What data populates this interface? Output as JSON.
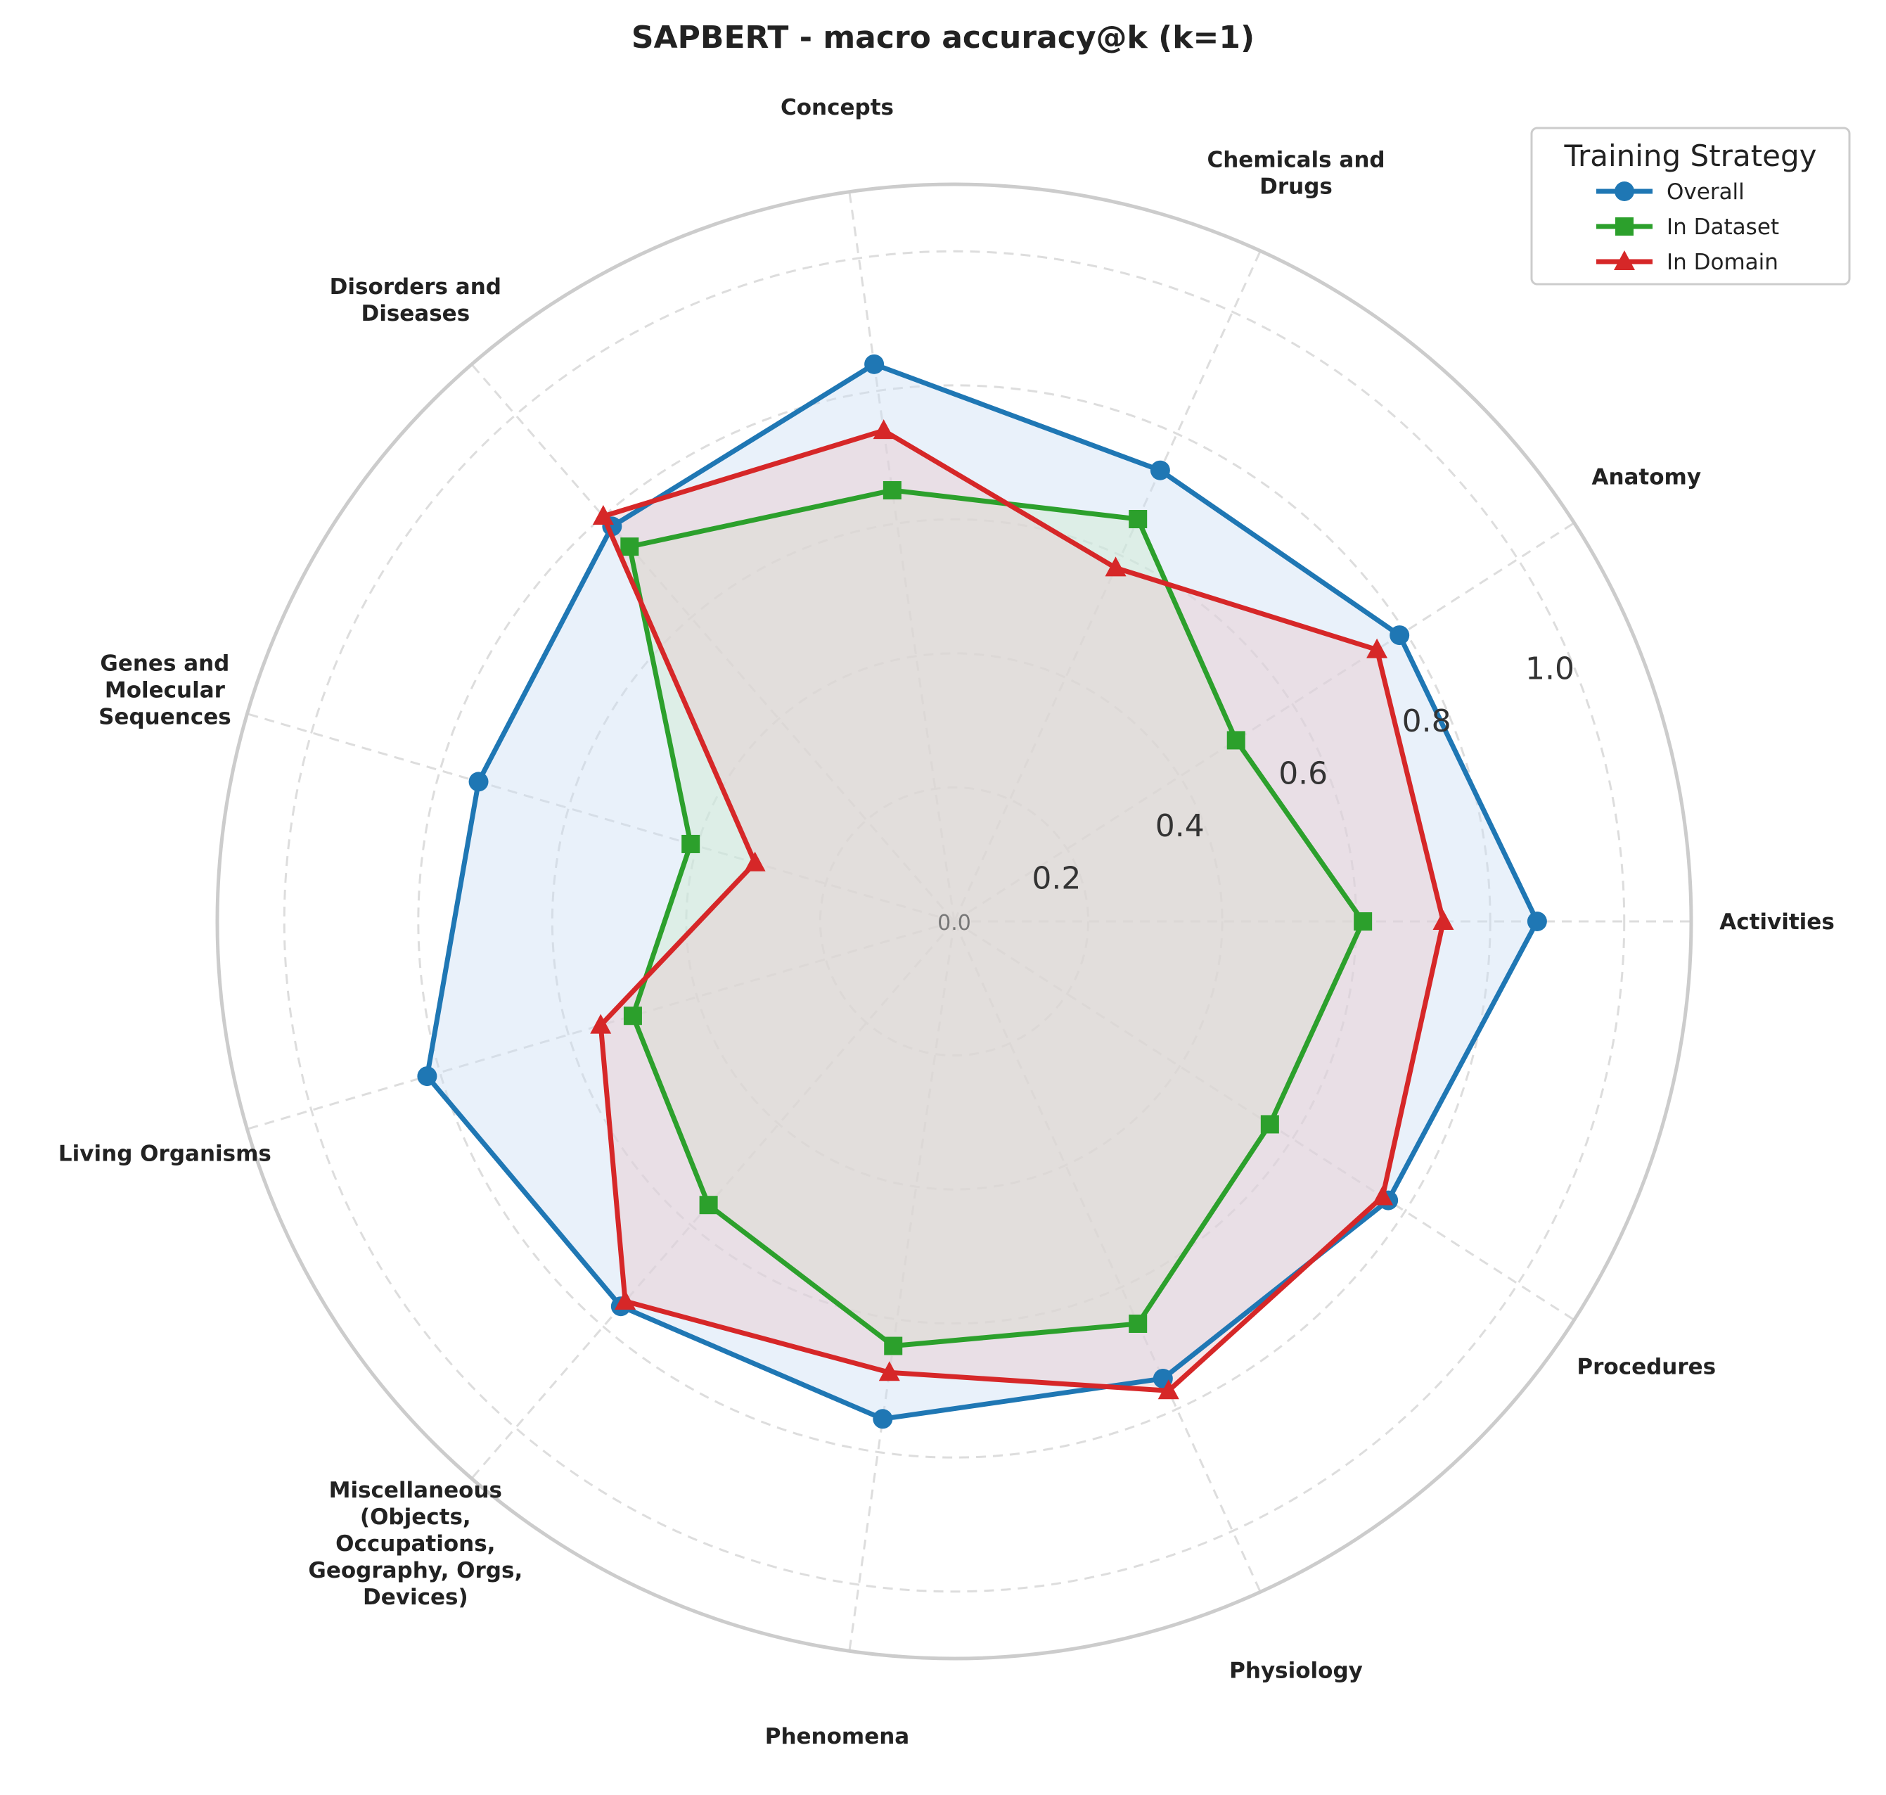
{
  "chart_data": {
    "type": "radar",
    "title": "SAPBERT - macro accuracy@k (k=1)",
    "categories": [
      "Activities",
      "Anatomy",
      "Chemicals and\nDrugs",
      "Concepts",
      "Disorders and\nDiseases",
      "Genes and\nMolecular\nSequences",
      "Living Organisms",
      "Miscellaneous\n(Objects,\nOccupations,\nGeography, Orgs,\nDevices)",
      "Phenomena",
      "Physiology",
      "Procedures"
    ],
    "radial_range": [
      0,
      1.1
    ],
    "radial_ticks": [
      "0.0",
      "0.2",
      "0.4",
      "0.6",
      "0.8",
      "1.0"
    ],
    "grid": true,
    "legend": {
      "title": "Training Strategy",
      "placement": "top-right"
    },
    "series": [
      {
        "name": "Overall",
        "color": "#1f77b4",
        "fill": "#cfe0f3",
        "marker": "circle",
        "values": [
          0.87,
          0.79,
          0.74,
          0.84,
          0.78,
          0.74,
          0.82,
          0.76,
          0.75,
          0.75,
          0.77
        ]
      },
      {
        "name": "In Dataset",
        "color": "#2ca02c",
        "fill": "#cfead1",
        "marker": "square",
        "values": [
          0.61,
          0.5,
          0.66,
          0.65,
          0.74,
          0.41,
          0.5,
          0.56,
          0.64,
          0.66,
          0.56
        ]
      },
      {
        "name": "In Domain",
        "color": "#d62728",
        "fill": "#e9c9cf",
        "marker": "triangle",
        "values": [
          0.73,
          0.75,
          0.58,
          0.74,
          0.8,
          0.31,
          0.55,
          0.75,
          0.68,
          0.77,
          0.76
        ]
      }
    ]
  }
}
